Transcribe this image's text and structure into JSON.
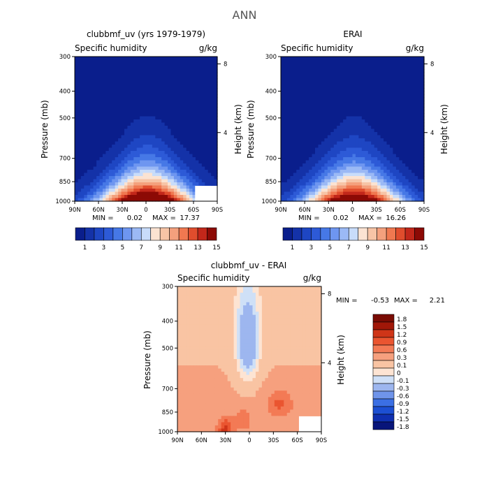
{
  "figure_title": "ANN",
  "colors": {
    "blue_red_15": [
      "#0a1e8c",
      "#1432a8",
      "#1e46c3",
      "#2d5ad7",
      "#4678e6",
      "#6e96f0",
      "#9bb9f5",
      "#c8dcfa",
      "#fbe3d2",
      "#f7c4a6",
      "#f4a07d",
      "#f07850",
      "#e04d2d",
      "#c2271a",
      "#8c0a05"
    ],
    "diff": [
      "#08157a",
      "#0f2fb0",
      "#1c4fd3",
      "#3b6fe4",
      "#6f94ea",
      "#9db6ef",
      "#cfe0f7",
      "#fde4d3",
      "#f9c4a3",
      "#f6a07e",
      "#f37a55",
      "#ea5530",
      "#cf3518",
      "#a11708",
      "#7a0c04"
    ]
  },
  "chart_data": [
    {
      "id": "model",
      "type": "heatmap",
      "title": "clubbmf_uv (yrs 1979-1979)",
      "subtitle_left": "Specific humidity",
      "units": "g/kg",
      "ylabel": "Pressure (mb)",
      "ylabel_right": "Height (km)",
      "x_ticks": [
        "90N",
        "60N",
        "30N",
        "0",
        "30S",
        "60S",
        "90S"
      ],
      "x_range": [
        90,
        -90
      ],
      "y_ticks": [
        300,
        400,
        500,
        700,
        850,
        1000
      ],
      "y_range": [
        300,
        1000
      ],
      "y_scale": "log",
      "height_ticks": [
        8,
        4
      ],
      "min_label": "MIN =",
      "min": "0.02",
      "max_label": "MAX =",
      "max": "17.37",
      "levels": [
        1,
        2,
        3,
        4,
        5,
        6,
        7,
        8,
        9,
        10,
        11,
        12,
        13,
        14,
        15
      ],
      "colorbar_labels": [
        "1",
        "3",
        "5",
        "7",
        "9",
        "11",
        "13",
        "15"
      ],
      "peak_lat": 0,
      "peak_value": 17.37
    },
    {
      "id": "obs",
      "type": "heatmap",
      "title": "ERAI",
      "subtitle_left": "Specific humidity",
      "units": "g/kg",
      "ylabel": "Pressure (mb)",
      "ylabel_right": "Height (km)",
      "x_ticks": [
        "90N",
        "60N",
        "30N",
        "0",
        "30S",
        "60S",
        "90S"
      ],
      "x_range": [
        90,
        -90
      ],
      "y_ticks": [
        300,
        400,
        500,
        700,
        850,
        1000
      ],
      "y_range": [
        300,
        1000
      ],
      "y_scale": "log",
      "height_ticks": [
        8,
        4
      ],
      "min_label": "MIN =",
      "min": "0.02",
      "max_label": "MAX =",
      "max": "16.26",
      "levels": [
        1,
        2,
        3,
        4,
        5,
        6,
        7,
        8,
        9,
        10,
        11,
        12,
        13,
        14,
        15
      ],
      "colorbar_labels": [
        "1",
        "3",
        "5",
        "7",
        "9",
        "11",
        "13",
        "15"
      ],
      "peak_lat": 0,
      "peak_value": 16.26
    },
    {
      "id": "diff",
      "type": "heatmap",
      "title": "clubbmf_uv - ERAI",
      "subtitle_left": "Specific humidity",
      "units": "g/kg",
      "ylabel": "Pressure (mb)",
      "ylabel_right": "Height (km)",
      "x_ticks": [
        "90N",
        "60N",
        "30N",
        "0",
        "30S",
        "60S",
        "90S"
      ],
      "x_range": [
        90,
        -90
      ],
      "y_ticks": [
        300,
        400,
        500,
        700,
        850,
        1000
      ],
      "y_range": [
        300,
        1000
      ],
      "y_scale": "log",
      "height_ticks": [
        8,
        4
      ],
      "min_label": "MIN =",
      "min": "-0.53",
      "max_label": "MAX =",
      "max": "2.21",
      "levels": [
        -1.8,
        -1.5,
        -1.2,
        -0.9,
        -0.6,
        -0.3,
        -0.1,
        0,
        0.1,
        0.3,
        0.6,
        0.9,
        1.2,
        1.5,
        1.8
      ],
      "colorbar_labels": [
        "1.8",
        "1.5",
        "1.2",
        "0.9",
        "0.6",
        "0.3",
        "0.1",
        "0",
        "-0.1",
        "-0.3",
        "-0.6",
        "-0.9",
        "-1.2",
        "-1.5",
        "-1.8"
      ]
    }
  ]
}
